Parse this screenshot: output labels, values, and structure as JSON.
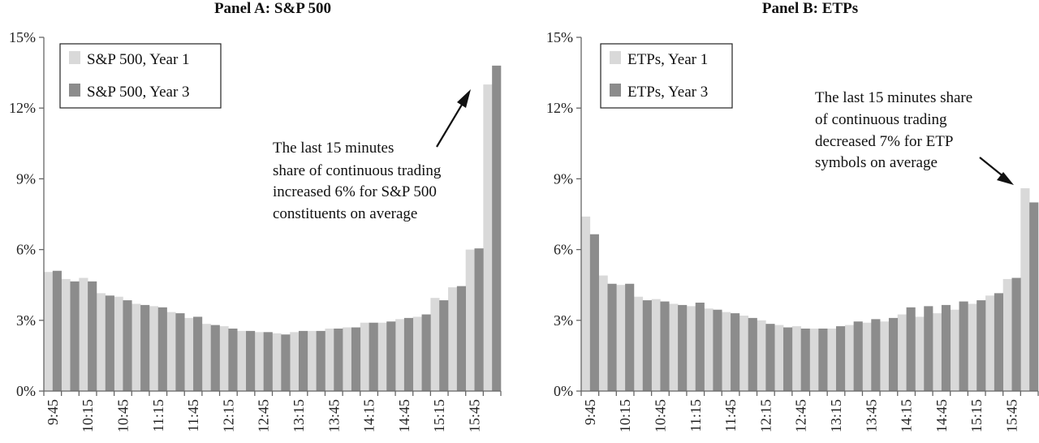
{
  "chart_data": [
    {
      "type": "bar",
      "title": "Panel A: S&P 500",
      "xlabel": "",
      "ylabel": "",
      "ylim": [
        0,
        15
      ],
      "yticks": [
        "0%",
        "3%",
        "6%",
        "9%",
        "12%",
        "15%"
      ],
      "categories": [
        "9:45",
        "10:00",
        "10:15",
        "10:30",
        "10:45",
        "11:00",
        "11:15",
        "11:30",
        "11:45",
        "12:00",
        "12:15",
        "12:30",
        "12:45",
        "13:00",
        "13:15",
        "13:30",
        "13:45",
        "14:00",
        "14:15",
        "14:30",
        "14:45",
        "15:00",
        "15:15",
        "15:30",
        "15:45",
        "16:00"
      ],
      "tick_labels": [
        "9:45",
        "10:15",
        "10:45",
        "11:15",
        "11:45",
        "12:15",
        "12:45",
        "13:15",
        "13:45",
        "14:15",
        "14:45",
        "15:15",
        "15:45"
      ],
      "series": [
        {
          "name": "S&P 500, Year 1",
          "color": "#d9d9d9",
          "values": [
            5.05,
            4.75,
            4.8,
            4.15,
            4.0,
            3.7,
            3.6,
            3.35,
            3.1,
            2.85,
            2.75,
            2.55,
            2.5,
            2.45,
            2.5,
            2.55,
            2.65,
            2.7,
            2.9,
            2.9,
            3.05,
            3.15,
            3.95,
            4.4,
            6.0,
            13.0
          ]
        },
        {
          "name": "S&P 500, Year 3",
          "color": "#8c8c8c",
          "values": [
            5.1,
            4.65,
            4.65,
            4.05,
            3.85,
            3.65,
            3.55,
            3.3,
            3.15,
            2.8,
            2.65,
            2.55,
            2.5,
            2.4,
            2.55,
            2.55,
            2.65,
            2.7,
            2.9,
            2.95,
            3.1,
            3.25,
            3.85,
            4.45,
            6.05,
            13.8
          ]
        }
      ],
      "legend": "top-left",
      "annotation": [
        "The last 15 minutes",
        "share of continuous trading",
        "increased 6% for S&P 500",
        "constituents on average"
      ]
    },
    {
      "type": "bar",
      "title": "Panel B: ETPs",
      "xlabel": "",
      "ylabel": "",
      "ylim": [
        0,
        15
      ],
      "yticks": [
        "0%",
        "3%",
        "6%",
        "9%",
        "12%",
        "15%"
      ],
      "categories": [
        "9:45",
        "10:00",
        "10:15",
        "10:30",
        "10:45",
        "11:00",
        "11:15",
        "11:30",
        "11:45",
        "12:00",
        "12:15",
        "12:30",
        "12:45",
        "13:00",
        "13:15",
        "13:30",
        "13:45",
        "14:00",
        "14:15",
        "14:30",
        "14:45",
        "15:00",
        "15:15",
        "15:30",
        "15:45",
        "16:00"
      ],
      "tick_labels": [
        "9:45",
        "10:15",
        "10:45",
        "11:15",
        "11:45",
        "12:15",
        "12:45",
        "13:15",
        "13:45",
        "14:15",
        "14:45",
        "15:15",
        "15:45"
      ],
      "series": [
        {
          "name": "ETPs, Year 1",
          "color": "#d9d9d9",
          "values": [
            7.4,
            4.9,
            4.5,
            4.0,
            3.9,
            3.7,
            3.6,
            3.5,
            3.35,
            3.2,
            3.0,
            2.8,
            2.75,
            2.65,
            2.65,
            2.8,
            2.9,
            2.95,
            3.25,
            3.15,
            3.3,
            3.45,
            3.7,
            4.05,
            4.75,
            8.6
          ]
        },
        {
          "name": "ETPs, Year 3",
          "color": "#8c8c8c",
          "values": [
            6.65,
            4.55,
            4.55,
            3.85,
            3.8,
            3.65,
            3.75,
            3.45,
            3.3,
            3.1,
            2.85,
            2.7,
            2.65,
            2.65,
            2.75,
            2.95,
            3.05,
            3.1,
            3.55,
            3.6,
            3.65,
            3.8,
            3.85,
            4.15,
            4.8,
            8.0
          ]
        }
      ],
      "legend": "top-left",
      "annotation": [
        "The last 15 minutes share",
        "of continuous trading",
        "decreased 7% for ETP",
        "symbols on average"
      ]
    }
  ]
}
